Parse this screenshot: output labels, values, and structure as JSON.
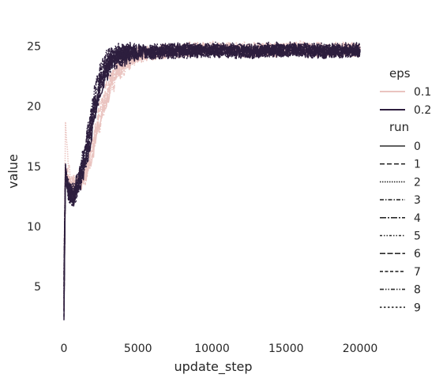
{
  "chart_data": {
    "type": "line",
    "xlabel": "update_step",
    "ylabel": "value",
    "xlim": [
      -800,
      20000
    ],
    "ylim": [
      1,
      27
    ],
    "x_ticks": [
      0,
      5000,
      10000,
      15000,
      20000
    ],
    "y_ticks": [
      5,
      10,
      15,
      20,
      25
    ],
    "x_tick_labels": [
      "0",
      "5000",
      "10000",
      "15000",
      "20000"
    ],
    "y_tick_labels": [
      "5",
      "10",
      "15",
      "20",
      "25"
    ],
    "grid": false,
    "legend_placement": "right",
    "legend": {
      "hue_title": "eps",
      "hue_entries": [
        {
          "label": "0.1",
          "color": "#eac4c0"
        },
        {
          "label": "0.2",
          "color": "#2d1e3e"
        }
      ],
      "style_title": "run",
      "style_entries": [
        {
          "label": "0",
          "dash": ""
        },
        {
          "label": "1",
          "dash": "6,3"
        },
        {
          "label": "2",
          "dash": "1.5,1.5"
        },
        {
          "label": "3",
          "dash": "5,2,1.5,2"
        },
        {
          "label": "4",
          "dash": "8,2,2,2"
        },
        {
          "label": "5",
          "dash": "3,2,1.5,2,1.5,2"
        },
        {
          "label": "6",
          "dash": "7,2.5"
        },
        {
          "label": "7",
          "dash": "4,2.5"
        },
        {
          "label": "8",
          "dash": "5,2,1.5,2,1.5,2"
        },
        {
          "label": "9",
          "dash": "2.5,2.5"
        }
      ]
    },
    "series": [
      {
        "eps": "0.1",
        "run": "0",
        "x": [
          0,
          100,
          300,
          600,
          1000,
          1500,
          2000,
          2500,
          3000,
          3500,
          4000,
          5000,
          6000,
          8000,
          10000,
          12000,
          14000,
          16000,
          18000,
          20000
        ],
        "y": [
          3.0,
          14.0,
          13.5,
          13.2,
          13.6,
          14.3,
          16.5,
          19.0,
          21.0,
          22.5,
          23.5,
          24.2,
          24.4,
          24.6,
          24.8,
          24.6,
          24.7,
          24.8,
          24.6,
          24.7
        ]
      },
      {
        "eps": "0.1",
        "run": "1",
        "x": [
          0,
          100,
          300,
          600,
          1000,
          1500,
          2000,
          2500,
          3000,
          3500,
          4000,
          5000,
          6000,
          8000,
          10000,
          12000,
          14000,
          16000,
          18000,
          20000
        ],
        "y": [
          5.0,
          15.0,
          14.0,
          13.4,
          13.8,
          15.0,
          17.5,
          20.0,
          21.8,
          23.0,
          23.8,
          24.4,
          24.6,
          24.8,
          24.9,
          24.7,
          24.6,
          24.8,
          24.7,
          24.8
        ]
      },
      {
        "eps": "0.1",
        "run": "2",
        "x": [
          0,
          100,
          300,
          600,
          1000,
          1500,
          2000,
          2500,
          3000,
          3500,
          4000,
          5000,
          6000,
          8000,
          10000,
          12000,
          14000,
          16000,
          18000,
          20000
        ],
        "y": [
          4.0,
          18.7,
          14.5,
          13.5,
          13.9,
          14.8,
          17.0,
          19.5,
          21.2,
          22.8,
          23.6,
          24.3,
          24.5,
          24.7,
          24.9,
          24.8,
          24.7,
          24.9,
          24.7,
          24.8
        ]
      },
      {
        "eps": "0.1",
        "run": "3",
        "x": [
          0,
          100,
          300,
          600,
          1000,
          1500,
          2000,
          2500,
          3000,
          3500,
          4000,
          5000,
          6000,
          8000,
          10000,
          12000,
          14000,
          16000,
          18000,
          20000
        ],
        "y": [
          6.0,
          14.2,
          13.3,
          13.1,
          13.5,
          14.2,
          16.2,
          18.8,
          20.8,
          22.2,
          23.3,
          24.1,
          24.4,
          24.6,
          24.7,
          24.6,
          24.7,
          24.7,
          24.6,
          24.7
        ]
      },
      {
        "eps": "0.1",
        "run": "4",
        "x": [
          0,
          100,
          300,
          600,
          1000,
          1500,
          2000,
          2500,
          3000,
          3500,
          4000,
          5000,
          6000,
          8000,
          10000,
          12000,
          14000,
          16000,
          18000,
          20000
        ],
        "y": [
          3.5,
          14.8,
          13.9,
          13.3,
          13.7,
          14.6,
          17.0,
          19.6,
          21.5,
          22.9,
          23.7,
          24.3,
          24.5,
          24.7,
          24.8,
          24.8,
          24.7,
          24.8,
          24.8,
          24.8
        ]
      },
      {
        "eps": "0.2",
        "run": "0",
        "x": [
          0,
          100,
          300,
          600,
          1000,
          1500,
          2000,
          2500,
          3000,
          3500,
          4000,
          5000,
          6000,
          8000,
          10000,
          12000,
          14000,
          16000,
          18000,
          20000
        ],
        "y": [
          2.2,
          14.5,
          12.5,
          12.3,
          13.2,
          15.5,
          18.5,
          21.5,
          23.0,
          23.8,
          24.1,
          24.3,
          24.4,
          24.5,
          24.6,
          24.5,
          24.6,
          24.6,
          24.5,
          24.6
        ]
      },
      {
        "eps": "0.2",
        "run": "1",
        "x": [
          0,
          100,
          300,
          600,
          1000,
          1500,
          2000,
          2500,
          3000,
          3500,
          4000,
          5000,
          6000,
          8000,
          10000,
          12000,
          14000,
          16000,
          18000,
          20000
        ],
        "y": [
          5.0,
          15.2,
          13.0,
          12.6,
          13.8,
          16.5,
          19.8,
          22.5,
          23.8,
          24.3,
          24.5,
          24.6,
          24.6,
          24.7,
          24.7,
          24.6,
          24.7,
          24.7,
          24.6,
          24.7
        ]
      },
      {
        "eps": "0.2",
        "run": "2",
        "x": [
          0,
          100,
          300,
          600,
          1000,
          1500,
          2000,
          2500,
          3000,
          3500,
          4000,
          5000,
          6000,
          8000,
          10000,
          12000,
          14000,
          16000,
          18000,
          20000
        ],
        "y": [
          4.0,
          14.0,
          12.8,
          12.5,
          13.5,
          16.0,
          19.2,
          22.0,
          23.4,
          24.1,
          24.3,
          24.5,
          24.5,
          24.6,
          24.7,
          24.6,
          24.6,
          24.7,
          24.6,
          24.6
        ]
      },
      {
        "eps": "0.2",
        "run": "3",
        "x": [
          0,
          100,
          300,
          600,
          1000,
          1500,
          2000,
          2500,
          3000,
          3500,
          4000,
          5000,
          6000,
          8000,
          10000,
          12000,
          14000,
          16000,
          18000,
          20000
        ],
        "y": [
          6.0,
          14.8,
          13.2,
          12.8,
          14.0,
          17.0,
          20.5,
          23.0,
          24.0,
          24.4,
          24.6,
          24.7,
          24.7,
          24.8,
          24.8,
          24.7,
          24.8,
          24.8,
          24.7,
          24.8
        ]
      },
      {
        "eps": "0.2",
        "run": "4",
        "x": [
          0,
          100,
          300,
          600,
          1000,
          1500,
          2000,
          2500,
          3000,
          3500,
          4000,
          5000,
          6000,
          8000,
          10000,
          12000,
          14000,
          16000,
          18000,
          20000
        ],
        "y": [
          3.0,
          13.8,
          12.6,
          12.4,
          13.4,
          15.8,
          19.0,
          21.8,
          23.2,
          23.9,
          24.2,
          24.4,
          24.5,
          24.6,
          24.6,
          24.5,
          24.6,
          24.6,
          24.5,
          24.6
        ]
      },
      {
        "eps": "0.2",
        "run": "5",
        "x": [
          0,
          100,
          300,
          600,
          1000,
          1500,
          2000,
          2500,
          3000,
          3500,
          4000,
          5000,
          6000,
          8000,
          10000,
          12000,
          14000,
          16000,
          18000,
          20000
        ],
        "y": [
          4.5,
          15.0,
          13.1,
          12.7,
          13.9,
          16.8,
          20.2,
          22.8,
          23.9,
          24.4,
          24.5,
          24.6,
          24.6,
          24.7,
          24.8,
          24.7,
          24.7,
          24.8,
          24.7,
          24.7
        ]
      },
      {
        "eps": "0.2",
        "run": "6",
        "x": [
          0,
          100,
          300,
          600,
          1000,
          1500,
          2000,
          2500,
          3000,
          3500,
          4000,
          5000,
          6000,
          8000,
          10000,
          12000,
          14000,
          16000,
          18000,
          20000
        ],
        "y": [
          3.5,
          14.3,
          12.9,
          12.6,
          13.7,
          16.3,
          19.5,
          22.3,
          23.6,
          24.2,
          24.4,
          24.5,
          24.5,
          24.6,
          24.7,
          24.6,
          24.6,
          24.7,
          24.6,
          24.6
        ]
      },
      {
        "eps": "0.2",
        "run": "7",
        "x": [
          0,
          100,
          300,
          600,
          1000,
          1500,
          2000,
          2500,
          3000,
          3500,
          4000,
          5000,
          6000,
          8000,
          10000,
          12000,
          14000,
          16000,
          18000,
          20000
        ],
        "y": [
          2.5,
          14.6,
          13.0,
          12.5,
          13.6,
          16.1,
          19.4,
          22.2,
          23.5,
          24.1,
          24.3,
          24.5,
          24.5,
          24.6,
          24.6,
          24.5,
          24.6,
          24.6,
          24.5,
          24.6
        ]
      },
      {
        "eps": "0.2",
        "run": "8",
        "x": [
          0,
          100,
          300,
          600,
          1000,
          1500,
          2000,
          2500,
          3000,
          3500,
          4000,
          5000,
          6000,
          8000,
          10000,
          12000,
          14000,
          16000,
          18000,
          20000
        ],
        "y": [
          5.5,
          15.1,
          13.3,
          12.9,
          14.1,
          17.2,
          20.8,
          23.2,
          24.1,
          24.5,
          24.6,
          24.7,
          24.7,
          24.8,
          24.8,
          24.7,
          24.8,
          24.8,
          24.7,
          24.8
        ]
      },
      {
        "eps": "0.2",
        "run": "9",
        "x": [
          0,
          100,
          300,
          600,
          1000,
          1500,
          2000,
          2500,
          3000,
          3500,
          4000,
          5000,
          6000,
          8000,
          10000,
          12000,
          14000,
          16000,
          18000,
          20000
        ],
        "y": [
          4.0,
          14.4,
          12.7,
          12.4,
          13.3,
          15.7,
          18.9,
          21.7,
          23.1,
          23.9,
          24.2,
          24.4,
          24.4,
          24.5,
          24.6,
          24.5,
          24.5,
          24.6,
          24.5,
          24.5
        ]
      }
    ]
  }
}
